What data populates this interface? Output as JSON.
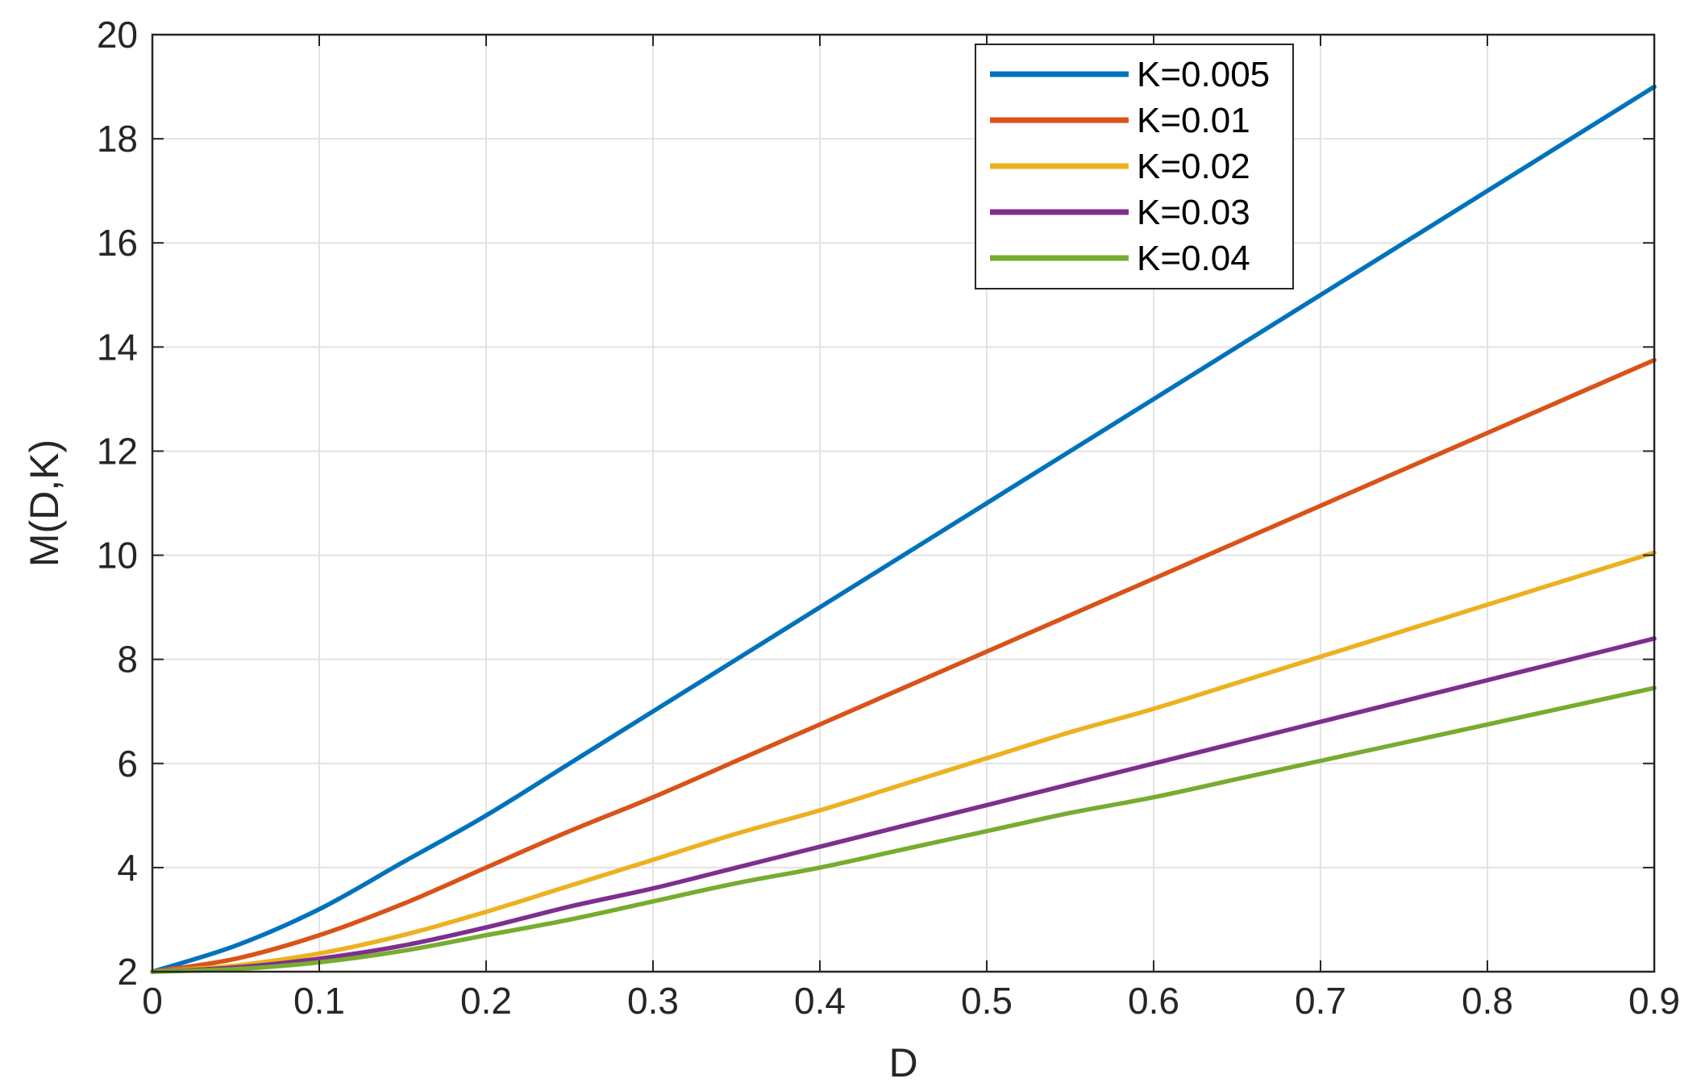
{
  "chart_data": {
    "type": "line",
    "title": "",
    "xlabel": "D",
    "ylabel": "M(D,K)",
    "xlim": [
      0,
      0.9
    ],
    "ylim": [
      2,
      20
    ],
    "xticks": [
      "0",
      "0.1",
      "0.2",
      "0.3",
      "0.4",
      "0.5",
      "0.6",
      "0.7",
      "0.8",
      "0.9"
    ],
    "yticks": [
      "2",
      "4",
      "6",
      "8",
      "10",
      "12",
      "14",
      "16",
      "18",
      "20"
    ],
    "grid": true,
    "legend_position": "top-right",
    "x": [
      0,
      0.05,
      0.1,
      0.15,
      0.2,
      0.25,
      0.3,
      0.35,
      0.4,
      0.45,
      0.5,
      0.55,
      0.6,
      0.65,
      0.7,
      0.75,
      0.8,
      0.85,
      0.9
    ],
    "series": [
      {
        "name": "K=0.005",
        "color": "#0072BD",
        "values": [
          2.0,
          2.5,
          3.2,
          4.1,
          5.0,
          6.0,
          7.0,
          8.0,
          9.0,
          10.0,
          11.0,
          12.0,
          13.0,
          14.0,
          15.0,
          16.0,
          17.0,
          18.0,
          19.0
        ]
      },
      {
        "name": "K=0.01",
        "color": "#D95319",
        "values": [
          2.0,
          2.25,
          2.7,
          3.3,
          4.0,
          4.7,
          5.35,
          6.05,
          6.75,
          7.45,
          8.15,
          8.85,
          9.55,
          10.25,
          10.95,
          11.65,
          12.35,
          13.05,
          13.75
        ]
      },
      {
        "name": "K=0.02",
        "color": "#EDB120",
        "values": [
          2.0,
          2.12,
          2.35,
          2.7,
          3.15,
          3.65,
          4.15,
          4.65,
          5.1,
          5.6,
          6.1,
          6.6,
          7.05,
          7.55,
          8.05,
          8.55,
          9.05,
          9.55,
          10.05
        ]
      },
      {
        "name": "K=0.03",
        "color": "#7E2F8E",
        "values": [
          2.0,
          2.08,
          2.25,
          2.5,
          2.85,
          3.25,
          3.6,
          4.0,
          4.4,
          4.8,
          5.2,
          5.6,
          6.0,
          6.4,
          6.8,
          7.2,
          7.6,
          8.0,
          8.4
        ]
      },
      {
        "name": "K=0.04",
        "color": "#77AC30",
        "values": [
          2.0,
          2.05,
          2.18,
          2.4,
          2.7,
          3.0,
          3.35,
          3.7,
          4.0,
          4.35,
          4.7,
          5.05,
          5.35,
          5.7,
          6.05,
          6.4,
          6.75,
          7.1,
          7.45
        ]
      }
    ]
  }
}
